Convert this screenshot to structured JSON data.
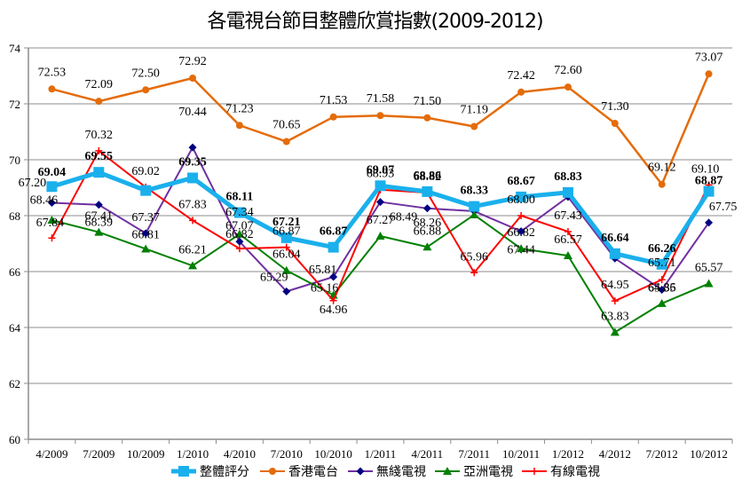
{
  "chart_data": {
    "type": "line",
    "title": "各電視台節目整體欣賞指數(2009-2012)",
    "xlabel": "",
    "ylabel": "",
    "ylim": [
      60,
      74
    ],
    "yticks": [
      60,
      62,
      64,
      66,
      68,
      70,
      72,
      74
    ],
    "grid": true,
    "legend_position": "bottom",
    "categories": [
      "4/2009",
      "7/2009",
      "10/2009",
      "1/2010",
      "4/2010",
      "7/2010",
      "10/2010",
      "1/2011",
      "4/2011",
      "7/2011",
      "10/2011",
      "1/2012",
      "4/2012",
      "7/2012",
      "10/2012"
    ],
    "series": [
      {
        "name": "整體評分",
        "color": "#1AB0EC",
        "marker": "square",
        "bold_labels": true,
        "values": [
          69.04,
          69.55,
          68.9,
          69.35,
          68.11,
          67.21,
          66.87,
          69.07,
          68.86,
          68.33,
          68.67,
          68.83,
          66.64,
          66.26,
          68.87
        ],
        "labels_shown": [
          true,
          true,
          false,
          true,
          true,
          true,
          true,
          true,
          true,
          true,
          true,
          true,
          true,
          true,
          true
        ]
      },
      {
        "name": "香港電台",
        "color": "#E46C0A",
        "marker": "circle",
        "bold_labels": false,
        "values": [
          72.53,
          72.09,
          72.5,
          72.92,
          71.23,
          70.65,
          71.53,
          71.58,
          71.5,
          71.19,
          72.42,
          72.6,
          71.3,
          69.12,
          73.07
        ],
        "labels_shown": [
          true,
          true,
          true,
          true,
          true,
          true,
          true,
          true,
          true,
          true,
          true,
          true,
          true,
          true,
          true
        ]
      },
      {
        "name": "無綫電視",
        "color": "#7030A0",
        "marker_color": "#000080",
        "marker": "diamond",
        "bold_labels": false,
        "values": [
          68.46,
          68.39,
          67.37,
          70.44,
          67.07,
          65.29,
          65.81,
          68.49,
          68.26,
          68.16,
          67.44,
          68.67,
          66.47,
          65.35,
          67.75
        ],
        "labels_shown": [
          true,
          true,
          true,
          true,
          true,
          true,
          true,
          true,
          true,
          false,
          true,
          false,
          false,
          true,
          true
        ]
      },
      {
        "name": "亞洲電視",
        "color": "#008000",
        "marker": "triangle",
        "bold_labels": false,
        "values": [
          67.84,
          67.41,
          66.81,
          66.21,
          67.34,
          66.04,
          65.16,
          67.27,
          66.88,
          68.03,
          66.82,
          66.57,
          63.83,
          64.86,
          65.57
        ],
        "labels_shown": [
          true,
          true,
          true,
          true,
          true,
          true,
          true,
          true,
          true,
          false,
          true,
          true,
          true,
          true,
          true
        ]
      },
      {
        "name": "有線電視",
        "color": "#FF0000",
        "marker": "cross",
        "bold_labels": false,
        "values": [
          67.2,
          70.32,
          69.02,
          67.83,
          66.82,
          66.87,
          64.96,
          68.93,
          68.82,
          65.96,
          68.0,
          67.43,
          64.95,
          65.71,
          69.1
        ],
        "labels_shown": [
          true,
          true,
          true,
          true,
          true,
          true,
          true,
          true,
          true,
          true,
          true,
          true,
          true,
          true,
          true
        ]
      }
    ]
  }
}
